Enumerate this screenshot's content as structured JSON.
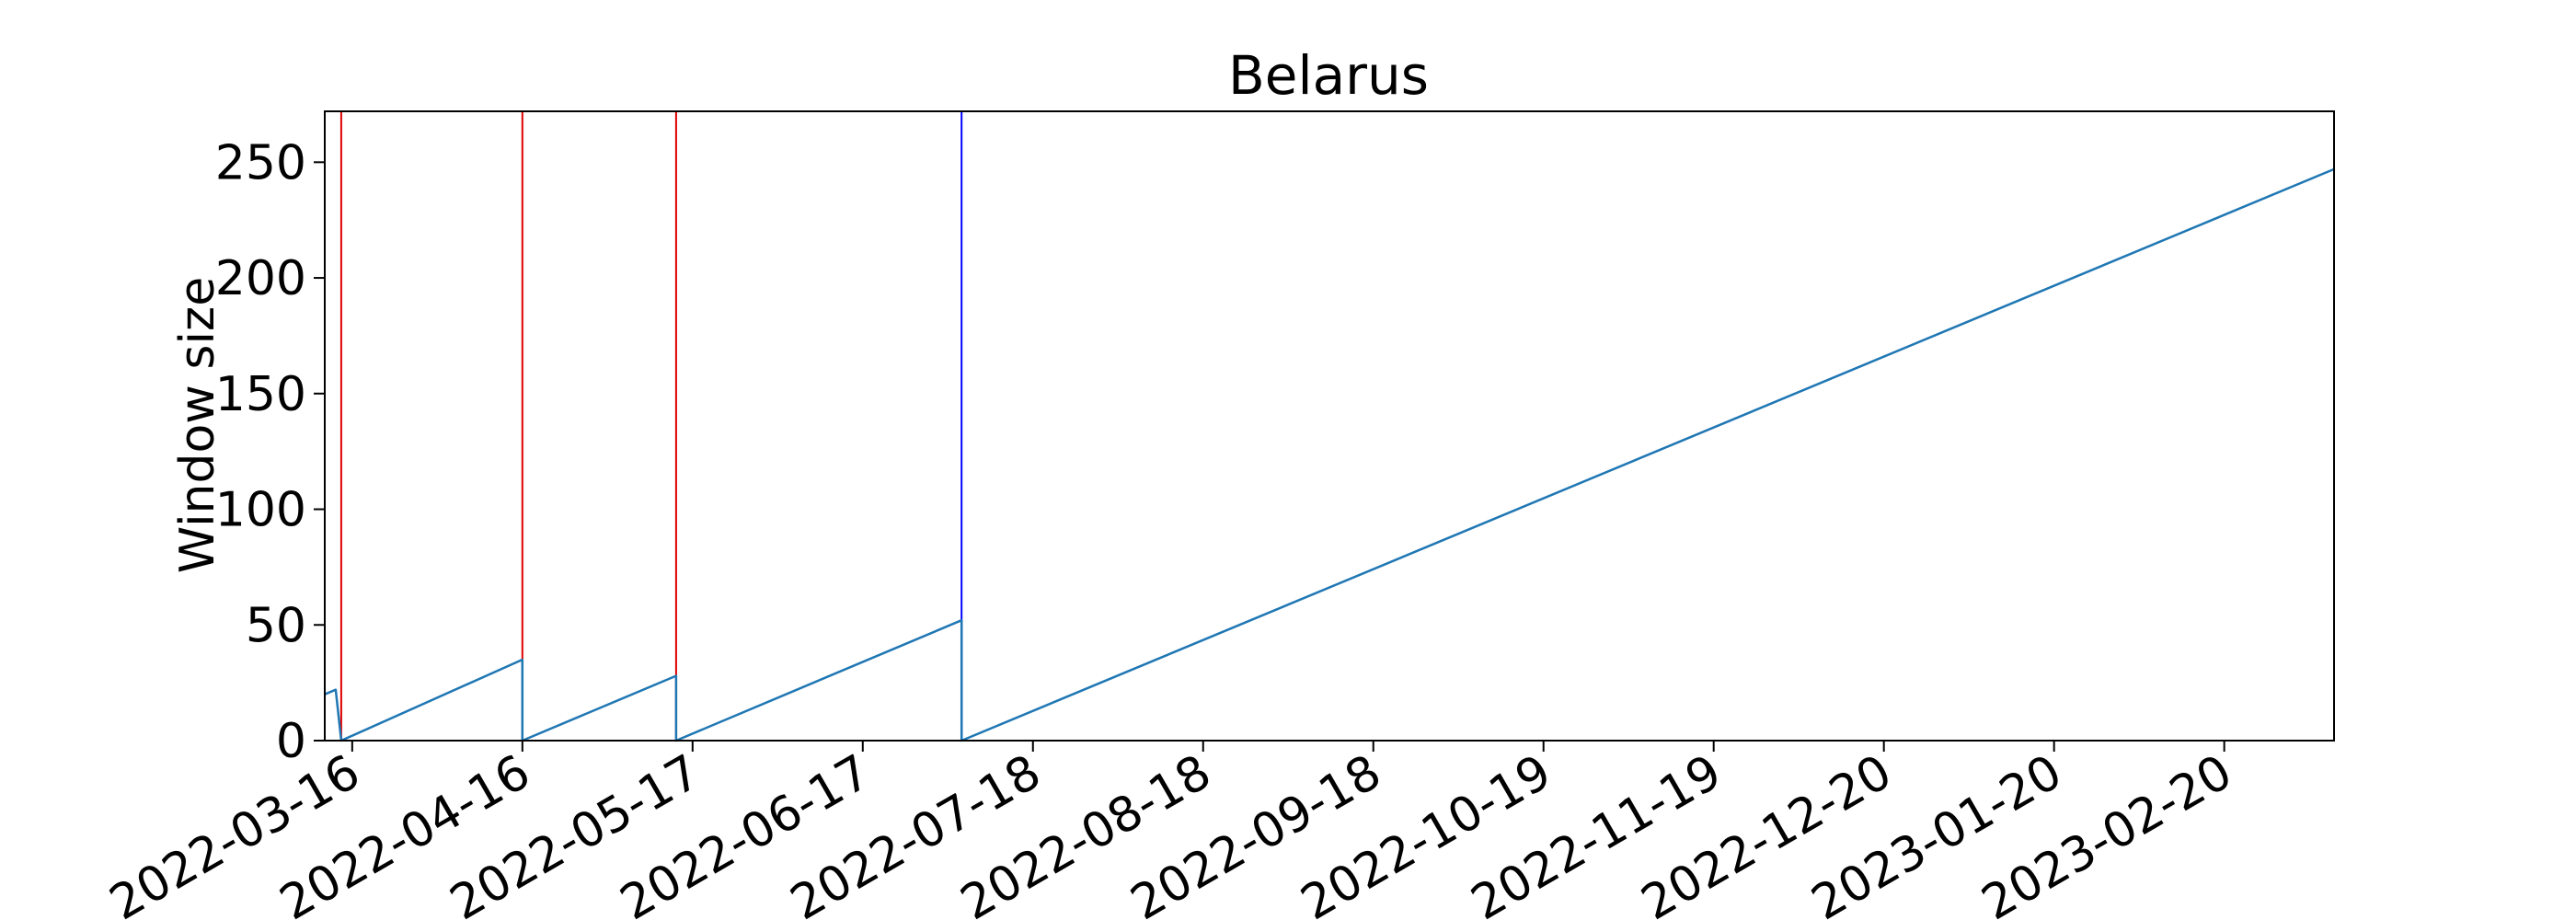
{
  "chart_data": {
    "type": "line",
    "title": "Belarus",
    "xlabel": "",
    "ylabel": "Window size",
    "ylim": [
      0,
      272
    ],
    "xlim": [
      "2022-03-11",
      "2023-03-12"
    ],
    "y_ticks": [
      0,
      50,
      100,
      150,
      200,
      250
    ],
    "x_ticks": [
      "2022-03-16",
      "2022-04-16",
      "2022-05-17",
      "2022-06-17",
      "2022-07-18",
      "2022-08-18",
      "2022-09-18",
      "2022-10-19",
      "2022-11-19",
      "2022-12-20",
      "2023-01-20",
      "2023-02-20"
    ],
    "grid": false,
    "series": [
      {
        "color": "#1f77b4",
        "points": [
          [
            "2022-03-11",
            20
          ],
          [
            "2022-03-13",
            22
          ],
          [
            "2022-03-14",
            0
          ],
          [
            "2022-04-16",
            35
          ],
          [
            "2022-04-16",
            0
          ],
          [
            "2022-05-14",
            28
          ],
          [
            "2022-05-14",
            0
          ],
          [
            "2022-07-05",
            52
          ],
          [
            "2022-07-05",
            0
          ],
          [
            "2023-03-12",
            247
          ]
        ]
      }
    ],
    "vlines": [
      {
        "x": "2022-03-11",
        "color": "#e00000"
      },
      {
        "x": "2022-03-14",
        "color": "#e00000"
      },
      {
        "x": "2022-04-16",
        "color": "#e00000"
      },
      {
        "x": "2022-05-14",
        "color": "#e00000"
      },
      {
        "x": "2022-07-05",
        "color": "#0000ff"
      }
    ]
  }
}
